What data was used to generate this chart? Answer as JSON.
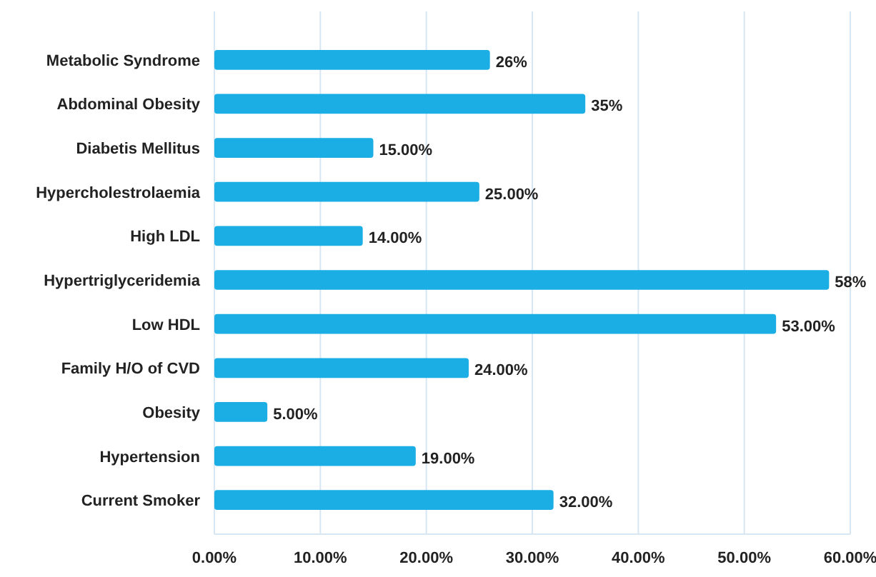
{
  "chart_data": {
    "type": "bar",
    "orientation": "horizontal",
    "categories": [
      "Metabolic Syndrome",
      "Abdominal Obesity",
      "Diabetis Mellitus",
      "Hypercholestrolaemia",
      "High LDL",
      "Hypertriglyceridemia",
      "Low HDL",
      "Family H/O of CVD",
      "Obesity",
      "Hypertension",
      "Current Smoker"
    ],
    "values": [
      26,
      35,
      15,
      25,
      14,
      58,
      53,
      24,
      5,
      19,
      32
    ],
    "value_labels": [
      "26%",
      "35%",
      "15.00%",
      "25.00%",
      "14.00%",
      "58%",
      "53.00%",
      "24.00%",
      "5.00%",
      "19.00%",
      "32.00%"
    ],
    "color": "#1aaee4",
    "xlim": [
      0,
      60
    ],
    "xticks": [
      {
        "value": 0,
        "label": "0.00%"
      },
      {
        "value": 10,
        "label": "10.00%"
      },
      {
        "value": 20,
        "label": "20.00%"
      },
      {
        "value": 30,
        "label": "30.00%"
      },
      {
        "value": 40,
        "label": "40.00%"
      },
      {
        "value": 50,
        "label": "50.00%"
      },
      {
        "value": 60,
        "label": "60.00%"
      }
    ],
    "grid": "x"
  }
}
